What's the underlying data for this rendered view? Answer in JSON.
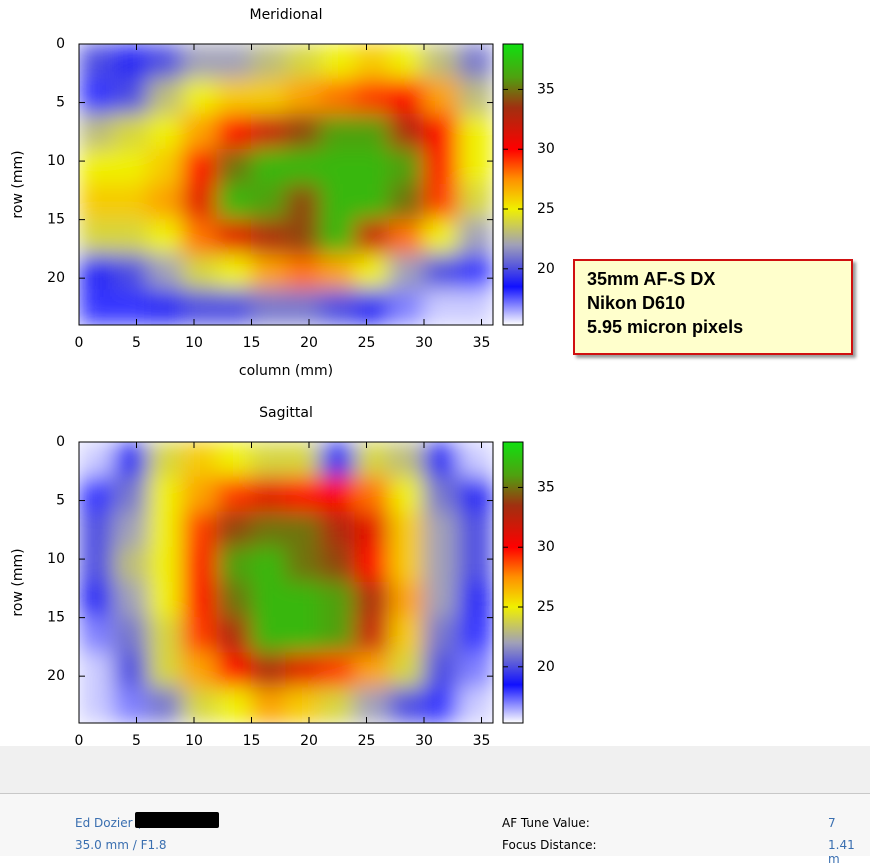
{
  "chart_data": [
    {
      "type": "heatmap",
      "title": "Meridional",
      "xlabel": "column (mm)",
      "ylabel": "row (mm)",
      "xlim": [
        0,
        36
      ],
      "ylim": [
        0,
        24
      ],
      "y_inverted": true,
      "xticks": [
        0,
        5,
        10,
        15,
        20,
        25,
        30,
        35
      ],
      "yticks": [
        0,
        5,
        10,
        15,
        20
      ],
      "values": [
        [
          20,
          19,
          20,
          22,
          22,
          23,
          24,
          25,
          26,
          25,
          23,
          21
        ],
        [
          18,
          20,
          23,
          25,
          26,
          26,
          27,
          28,
          29,
          30,
          27,
          23
        ],
        [
          23,
          24,
          25,
          27,
          30,
          32,
          34,
          36,
          36,
          33,
          30,
          25
        ],
        [
          25,
          25,
          26,
          30,
          35,
          37,
          37,
          37,
          37,
          36,
          30,
          25
        ],
        [
          26,
          26,
          27,
          31,
          37,
          36,
          34,
          37,
          37,
          35,
          29,
          24
        ],
        [
          24,
          24,
          25,
          28,
          31,
          33,
          34,
          37,
          32,
          28,
          25,
          22
        ],
        [
          19,
          20,
          22,
          24,
          25,
          27,
          28,
          27,
          25,
          22,
          20,
          18
        ],
        [
          18,
          18,
          19,
          20,
          20,
          21,
          21,
          20,
          19,
          17,
          16,
          16
        ]
      ],
      "colorbar": {
        "lim": [
          15.3,
          38.8
        ],
        "ticks": [
          20,
          25,
          30,
          35
        ]
      },
      "colormap": [
        [
          15.3,
          "#ffffff"
        ],
        [
          18.5,
          "#1010ff"
        ],
        [
          22,
          "#a0a0b8"
        ],
        [
          25,
          "#f0f000"
        ],
        [
          27.5,
          "#ff9000"
        ],
        [
          30,
          "#ff0000"
        ],
        [
          33.5,
          "#a03010"
        ],
        [
          36,
          "#50a010"
        ],
        [
          38.8,
          "#10e010"
        ]
      ]
    },
    {
      "type": "heatmap",
      "title": "Sagittal",
      "ylabel": "row (mm)",
      "xlim": [
        0,
        36
      ],
      "ylim": [
        0,
        24
      ],
      "y_inverted": true,
      "xticks": [
        0,
        5,
        10,
        15,
        20,
        25,
        30,
        35
      ],
      "yticks": [
        0,
        5,
        10,
        15,
        20
      ],
      "values": [
        [
          16,
          19,
          24,
          26,
          25,
          24,
          24,
          19,
          24,
          23,
          19,
          16
        ],
        [
          18,
          21,
          25,
          27,
          29,
          31,
          30,
          30,
          28,
          25,
          21,
          19
        ],
        [
          20,
          22,
          25,
          29,
          34,
          35,
          35,
          33,
          31,
          26,
          22,
          20
        ],
        [
          20,
          23,
          25,
          30,
          36,
          37,
          35,
          34,
          30,
          26,
          22,
          20
        ],
        [
          19,
          22,
          25,
          30,
          35,
          37,
          37,
          36,
          33,
          27,
          22,
          19
        ],
        [
          17,
          21,
          24,
          29,
          33,
          37,
          37,
          36,
          32,
          26,
          21,
          18
        ],
        [
          16,
          20,
          24,
          27,
          30,
          33,
          31,
          29,
          27,
          24,
          20,
          17
        ],
        [
          16,
          17,
          21,
          24,
          25,
          27,
          26,
          24,
          22,
          20,
          18,
          16
        ]
      ],
      "colorbar": {
        "lim": [
          15.3,
          38.8
        ],
        "ticks": [
          20,
          25,
          30,
          35
        ]
      },
      "colormap": [
        [
          15.3,
          "#ffffff"
        ],
        [
          18.5,
          "#1010ff"
        ],
        [
          22,
          "#a0a0b8"
        ],
        [
          25,
          "#f0f000"
        ],
        [
          27.5,
          "#ff9000"
        ],
        [
          30,
          "#ff0000"
        ],
        [
          33.5,
          "#a03010"
        ],
        [
          36,
          "#50a010"
        ],
        [
          38.8,
          "#10e010"
        ]
      ]
    }
  ],
  "annotation": {
    "lines": [
      "35mm AF-S DX",
      "Nikon D610",
      "5.95 micron pixels"
    ]
  },
  "footer": {
    "author": "Ed Dozier (",
    "lens": "35.0 mm / F1.8",
    "af_tune_label": "AF Tune Value:",
    "af_tune_value": "7",
    "focus_distance_label": "Focus Distance:",
    "focus_distance_value": "1.41 m"
  }
}
